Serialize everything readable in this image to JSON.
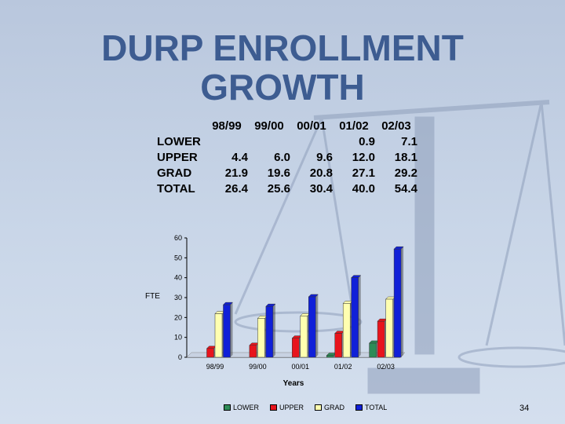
{
  "slide": {
    "title_line1": "DURP ENROLLMENT",
    "title_line2": "GROWTH",
    "page_number": "34"
  },
  "table": {
    "headers": [
      "98/99",
      "99/00",
      "00/01",
      "01/02",
      "02/03"
    ],
    "rows": [
      {
        "label": "LOWER",
        "cells": [
          "",
          "",
          "",
          "0.9",
          "7.1"
        ]
      },
      {
        "label": "UPPER",
        "cells": [
          "4.4",
          "6.0",
          "9.6",
          "12.0",
          "18.1"
        ]
      },
      {
        "label": "GRAD",
        "cells": [
          "21.9",
          "19.6",
          "20.8",
          "27.1",
          "29.2"
        ]
      },
      {
        "label": "TOTAL",
        "cells": [
          "26.4",
          "25.6",
          "30.4",
          "40.0",
          "54.4"
        ]
      }
    ]
  },
  "chart_data": {
    "type": "bar",
    "categories": [
      "98/99",
      "99/00",
      "00/01",
      "01/02",
      "02/03"
    ],
    "series": [
      {
        "name": "LOWER",
        "values": [
          0,
          0,
          0,
          0.9,
          7.1
        ],
        "color": "#2e8b57"
      },
      {
        "name": "UPPER",
        "values": [
          4.4,
          6.0,
          9.6,
          12.0,
          18.1
        ],
        "color": "#e8141c"
      },
      {
        "name": "GRAD",
        "values": [
          21.9,
          19.6,
          20.8,
          27.1,
          29.2
        ],
        "color": "#ffffb0"
      },
      {
        "name": "TOTAL",
        "values": [
          26.4,
          25.6,
          30.4,
          40.0,
          54.4
        ],
        "color": "#1020d8"
      }
    ],
    "xlabel": "Years",
    "ylabel": "FTE",
    "ylim": [
      0,
      60
    ],
    "yticks": [
      "0",
      "10",
      "20",
      "30",
      "40",
      "50",
      "60"
    ],
    "legend_position": "bottom",
    "grid": false
  }
}
